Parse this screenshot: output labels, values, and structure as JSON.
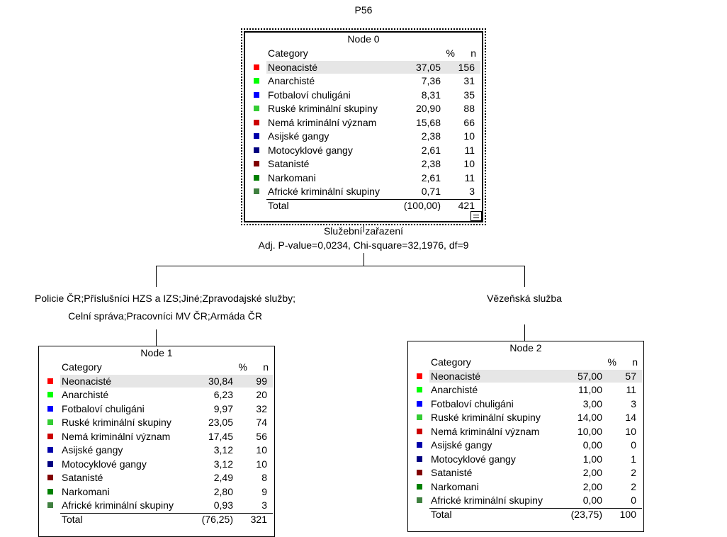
{
  "title": "P56",
  "colors": [
    "#ff0000",
    "#00ff00",
    "#0000ff",
    "#33cc33",
    "#cc0000",
    "#0000aa",
    "#000080",
    "#800000",
    "#008000",
    "#408040"
  ],
  "nodes": [
    {
      "label": "Node 0",
      "header": [
        "Category",
        "%",
        "n"
      ],
      "rows": [
        [
          "Neonacisté",
          "37,05",
          "156"
        ],
        [
          "Anarchisté",
          "7,36",
          "31"
        ],
        [
          "Fotbaloví chuligáni",
          "8,31",
          "35"
        ],
        [
          "Ruské kriminální skupiny",
          "20,90",
          "88"
        ],
        [
          "Nemá kriminální význam",
          "15,68",
          "66"
        ],
        [
          "Asijské gangy",
          "2,38",
          "10"
        ],
        [
          "Motocyklové gangy",
          "2,61",
          "11"
        ],
        [
          "Satanisté",
          "2,38",
          "10"
        ],
        [
          "Narkomani",
          "2,61",
          "11"
        ],
        [
          "Africké kriminální skupiny",
          "0,71",
          "3"
        ]
      ],
      "total": [
        "Total",
        "(100,00)",
        "421"
      ]
    },
    {
      "label": "Node 1",
      "header": [
        "Category",
        "%",
        "n"
      ],
      "rows": [
        [
          "Neonacisté",
          "30,84",
          "99"
        ],
        [
          "Anarchisté",
          "6,23",
          "20"
        ],
        [
          "Fotbaloví chuligáni",
          "9,97",
          "32"
        ],
        [
          "Ruské kriminální skupiny",
          "23,05",
          "74"
        ],
        [
          "Nemá kriminální význam",
          "17,45",
          "56"
        ],
        [
          "Asijské gangy",
          "3,12",
          "10"
        ],
        [
          "Motocyklové gangy",
          "3,12",
          "10"
        ],
        [
          "Satanisté",
          "2,49",
          "8"
        ],
        [
          "Narkomani",
          "2,80",
          "9"
        ],
        [
          "Africké kriminální skupiny",
          "0,93",
          "3"
        ]
      ],
      "total": [
        "Total",
        "(76,25)",
        "321"
      ]
    },
    {
      "label": "Node 2",
      "header": [
        "Category",
        "%",
        "n"
      ],
      "rows": [
        [
          "Neonacisté",
          "57,00",
          "57"
        ],
        [
          "Anarchisté",
          "11,00",
          "11"
        ],
        [
          "Fotbaloví chuligáni",
          "3,00",
          "3"
        ],
        [
          "Ruské kriminální skupiny",
          "14,00",
          "14"
        ],
        [
          "Nemá kriminální význam",
          "10,00",
          "10"
        ],
        [
          "Asijské gangy",
          "0,00",
          "0"
        ],
        [
          "Motocyklové gangy",
          "1,00",
          "1"
        ],
        [
          "Satanisté",
          "2,00",
          "2"
        ],
        [
          "Narkomani",
          "2,00",
          "2"
        ],
        [
          "Africké kriminální skupiny",
          "0,00",
          "0"
        ]
      ],
      "total": [
        "Total",
        "(23,75)",
        "100"
      ]
    }
  ],
  "split": {
    "variable": "Služební zařazení",
    "stats": "Adj. P-value=0,0234, Chi-square=32,1976, df=9"
  },
  "branches": [
    [
      "Policie ČR;Příslušníci HZS a IZS;Jiné;Zpravodajské služby;",
      "Celní správa;Pracovníci MV ČR;Armáda ČR"
    ],
    [
      "Vězeňská služba"
    ]
  ]
}
